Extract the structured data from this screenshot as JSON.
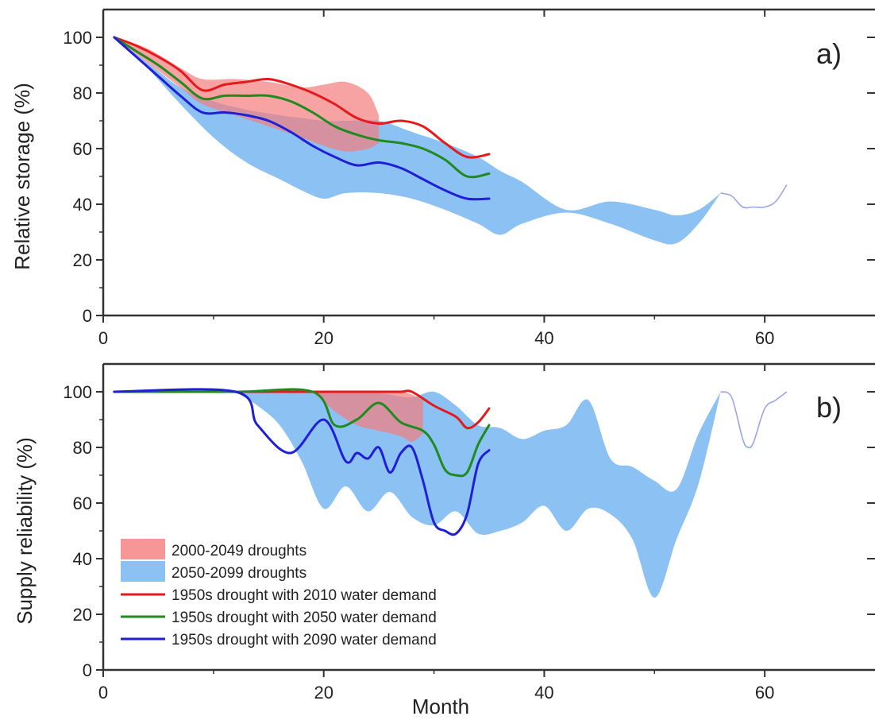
{
  "chart_data": [
    {
      "type": "area",
      "panel": "a)",
      "ylabel": "Relative storage (%)",
      "xlabel": "",
      "xlim": [
        0,
        70
      ],
      "ylim": [
        0,
        110
      ],
      "x_ticks": [
        0,
        20,
        40,
        60
      ],
      "y_ticks": [
        0,
        20,
        40,
        60,
        80,
        100
      ],
      "bands": [
        {
          "name": "2050-2099 droughts",
          "color": "#86bef2",
          "x": [
            1,
            4,
            7,
            10,
            13,
            16,
            18,
            20,
            22,
            25,
            28,
            31,
            34,
            36,
            38,
            42,
            46,
            50,
            52,
            54,
            56
          ],
          "lower": [
            100,
            89,
            76,
            64,
            55,
            49,
            45,
            42,
            44,
            44,
            42,
            38,
            33,
            29,
            33,
            37,
            33,
            27,
            26,
            33,
            44
          ],
          "upper": [
            100,
            91,
            82,
            77,
            74,
            72,
            71,
            70,
            70,
            70,
            66,
            62,
            57,
            52,
            48,
            38,
            41,
            38,
            36,
            38,
            44
          ]
        },
        {
          "name": "2000-2049 droughts",
          "color": "#f47c7c",
          "x": [
            1,
            4,
            7,
            9,
            12,
            15,
            18,
            20,
            22,
            24,
            25
          ],
          "lower": [
            100,
            91,
            82,
            76,
            72,
            68,
            64,
            61,
            59,
            60,
            62
          ],
          "upper": [
            100,
            96,
            89,
            85,
            85,
            84,
            82,
            83,
            84,
            80,
            72
          ]
        }
      ],
      "series": [
        {
          "name": "1950s drought with 2010 water demand",
          "color": "#e41a1c",
          "x": [
            1,
            3,
            5,
            7,
            9,
            11,
            13,
            15,
            17,
            19,
            21,
            23,
            25,
            27,
            29,
            31,
            33,
            35
          ],
          "y": [
            100,
            97,
            93,
            88,
            81,
            83,
            84,
            85,
            83,
            80,
            76,
            71,
            69,
            70,
            68,
            62,
            57,
            58
          ]
        },
        {
          "name": "1950s drought with 2050 water demand",
          "color": "#1f8a1f",
          "x": [
            1,
            3,
            5,
            7,
            9,
            11,
            13,
            15,
            17,
            19,
            21,
            23,
            25,
            27,
            29,
            31,
            33,
            35
          ],
          "y": [
            100,
            95,
            90,
            84,
            78,
            79,
            79,
            79,
            77,
            73,
            68,
            65,
            63,
            62,
            60,
            56,
            50,
            51
          ]
        },
        {
          "name": "1950s drought with 2090 water demand",
          "color": "#1f1fd6",
          "x": [
            1,
            3,
            5,
            7,
            9,
            11,
            13,
            15,
            17,
            19,
            21,
            23,
            25,
            27,
            29,
            31,
            33,
            35
          ],
          "y": [
            100,
            93,
            86,
            79,
            73,
            73,
            72,
            70,
            66,
            61,
            57,
            54,
            55,
            53,
            49,
            45,
            42,
            42
          ]
        }
      ],
      "thin_lines": [
        {
          "color": "#9ba5ea",
          "x": [
            56,
            57,
            58,
            59,
            60,
            61,
            62
          ],
          "y": [
            44,
            43,
            39,
            39,
            39,
            41,
            47
          ]
        }
      ]
    },
    {
      "type": "area",
      "panel": "b)",
      "ylabel": "Supply reliability (%)",
      "xlabel": "Month",
      "xlim": [
        0,
        70
      ],
      "ylim": [
        0,
        110
      ],
      "x_ticks": [
        0,
        20,
        40,
        60
      ],
      "y_ticks": [
        0,
        20,
        40,
        60,
        80,
        100
      ],
      "bands": [
        {
          "name": "2050-2099 droughts",
          "color": "#86bef2",
          "x": [
            12,
            14,
            16,
            18,
            20,
            22,
            24,
            26,
            28,
            30,
            32,
            34,
            36,
            38,
            40,
            42,
            44,
            46,
            48,
            50,
            52,
            54,
            56
          ],
          "lower": [
            100,
            95,
            88,
            75,
            58,
            66,
            57,
            64,
            55,
            52,
            57,
            49,
            50,
            53,
            59,
            50,
            58,
            56,
            47,
            26,
            47,
            67,
            100
          ],
          "upper": [
            100,
            100,
            100,
            100,
            100,
            100,
            100,
            99,
            98,
            100,
            95,
            88,
            87,
            83,
            86,
            88,
            97,
            76,
            73,
            68,
            65,
            85,
            100
          ]
        },
        {
          "name": "2000-2049 droughts",
          "color": "#f47c7c",
          "x": [
            19,
            21,
            23,
            25,
            27,
            28,
            29
          ],
          "lower": [
            100,
            93,
            88,
            86,
            84,
            82,
            85
          ],
          "upper": [
            100,
            100,
            100,
            100,
            100,
            99,
            97
          ]
        }
      ],
      "series": [
        {
          "name": "1950s drought with 2010 water demand",
          "color": "#e41a1c",
          "x": [
            1,
            12,
            19,
            22,
            25,
            27,
            28,
            30,
            32,
            33,
            34,
            35
          ],
          "y": [
            100,
            100,
            100,
            100,
            100,
            100,
            100,
            95,
            91,
            87,
            89,
            94
          ]
        },
        {
          "name": "1950s drought with 2050 water demand",
          "color": "#1f8a1f",
          "x": [
            1,
            12,
            19,
            21,
            23,
            25,
            27,
            29,
            30,
            31,
            32,
            33,
            34,
            35
          ],
          "y": [
            100,
            100,
            100,
            88,
            90,
            96,
            89,
            86,
            81,
            72,
            70,
            71,
            81,
            88
          ]
        },
        {
          "name": "1950s drought with 2090 water demand",
          "color": "#1f1fd6",
          "x": [
            1,
            12,
            14,
            17,
            20,
            22,
            23,
            24,
            25,
            26,
            27,
            28,
            29,
            30,
            31,
            32,
            33,
            34,
            35
          ],
          "y": [
            100,
            100,
            88,
            78,
            90,
            75,
            78,
            76,
            80,
            71,
            78,
            80,
            68,
            53,
            50,
            49,
            56,
            74,
            79
          ]
        }
      ],
      "thin_lines": [
        {
          "color": "#9ba5ea",
          "x": [
            56,
            57,
            58,
            58.5,
            59,
            60,
            61,
            62
          ],
          "y": [
            100,
            98,
            83,
            80,
            82,
            94,
            97,
            100
          ]
        }
      ]
    }
  ],
  "legend": [
    {
      "label": "2000-2049 droughts",
      "kind": "box",
      "color": "#f47c7c"
    },
    {
      "label": "2050-2099 droughts",
      "kind": "box",
      "color": "#86bef2"
    },
    {
      "label": "1950s drought with 2010 water demand",
      "kind": "line",
      "color": "#e41a1c"
    },
    {
      "label": "1950s drought with 2050 water demand",
      "kind": "line",
      "color": "#1f8a1f"
    },
    {
      "label": "1950s drought with 2090 water demand",
      "kind": "line",
      "color": "#1f1fd6"
    }
  ]
}
